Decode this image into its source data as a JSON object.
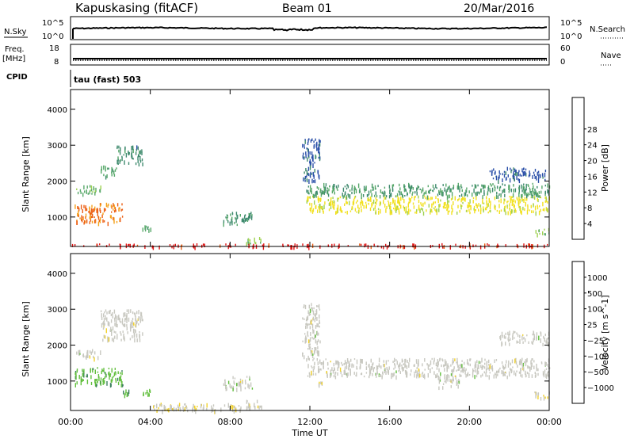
{
  "header": {
    "station": "Kapuskasing (fitACF)",
    "beam": "Beam 01",
    "date": "20/Mar/2016"
  },
  "top_panels": {
    "nsky_label": "N.Sky",
    "nsky_ticks": [
      "10^5",
      "10^0"
    ],
    "nsearch_label": "N.Search",
    "nsearch_ticks": [
      "10^5",
      "10^0"
    ],
    "freq_label_1": "Freq.",
    "freq_label_2": "[MHz]",
    "freq_ticks": [
      "18",
      "8"
    ],
    "nave_label": "Nave",
    "nave_ticks": [
      "60",
      "0"
    ],
    "cpid_label": "CPID",
    "cpid_value": "tau (fast) 503"
  },
  "colors": {
    "power": [
      "#1c2ee6",
      "#2a4fa8",
      "#3f8a6e",
      "#57a86a",
      "#9ed150",
      "#f2e01e",
      "#f5a21c",
      "#ec5f14",
      "#e11414"
    ],
    "velocity": [
      "#2333d6",
      "#2a55b0",
      "#3d7f60",
      "#62bf3e",
      "#c8c8c0",
      "#f2d22a",
      "#f0a020",
      "#ee6a14",
      "#e11414"
    ]
  },
  "chart_data": [
    {
      "type": "heatmap",
      "title": "",
      "xlabel": "Time UT",
      "ylabel": "Slant Range [km]",
      "x_ticks": [
        "00:00",
        "04:00",
        "08:00",
        "12:00",
        "16:00",
        "20:00",
        "00:00"
      ],
      "y_ticks": [
        "1000",
        "2000",
        "3000",
        "4000"
      ],
      "xlim": [
        0,
        24
      ],
      "ylim": [
        180,
        4550
      ],
      "colorbar_label": "Power [dB]",
      "colorbar_ticks": [
        "4",
        "8",
        "12",
        "16",
        "20",
        "24",
        "28"
      ],
      "colorbar_range": [
        0,
        32
      ],
      "regions": [
        {
          "x": [
            0.2,
            1.5
          ],
          "y": [
            1650,
            1900
          ],
          "value": 13
        },
        {
          "x": [
            1.5,
            2.3
          ],
          "y": [
            2150,
            2450
          ],
          "value": 12
        },
        {
          "x": [
            2.3,
            3.6
          ],
          "y": [
            2500,
            3000
          ],
          "value": 9
        },
        {
          "x": [
            0.2,
            2.6
          ],
          "y": [
            850,
            1400
          ],
          "value": 25
        },
        {
          "x": [
            3.6,
            4.0
          ],
          "y": [
            650,
            780
          ],
          "value": 12
        },
        {
          "x": [
            7.6,
            9.1
          ],
          "y": [
            800,
            1150
          ],
          "value": 10
        },
        {
          "x": [
            8.8,
            9.6
          ],
          "y": [
            280,
            480
          ],
          "value": 14
        },
        {
          "x": [
            11.8,
            24.0
          ],
          "y": [
            1150,
            1600
          ],
          "value": 19
        },
        {
          "x": [
            11.8,
            24.0
          ],
          "y": [
            1600,
            1950
          ],
          "value": 11
        },
        {
          "x": [
            11.6,
            12.5
          ],
          "y": [
            2000,
            3200
          ],
          "value": 6
        },
        {
          "x": [
            21.0,
            23.8
          ],
          "y": [
            2050,
            2400
          ],
          "value": 6
        },
        {
          "x": [
            23.3,
            24.0
          ],
          "y": [
            550,
            750
          ],
          "value": 14
        },
        {
          "x": [
            0.0,
            24.0
          ],
          "y": [
            200,
            270
          ],
          "value": 30
        }
      ]
    },
    {
      "type": "heatmap",
      "title": "",
      "xlabel": "Time UT",
      "ylabel": "Slant Range [km]",
      "x_ticks": [
        "00:00",
        "04:00",
        "08:00",
        "12:00",
        "16:00",
        "20:00",
        "00:00"
      ],
      "y_ticks": [
        "1000",
        "2000",
        "3000",
        "4000"
      ],
      "xlim": [
        0,
        24
      ],
      "ylim": [
        180,
        4550
      ],
      "colorbar_label": "Velocity [m s^-1]",
      "colorbar_ticks": [
        "1000",
        "500",
        "100",
        "25",
        "−25",
        "−100",
        "−500",
        "−1000"
      ],
      "colorbar_range": [
        -1200,
        1200
      ],
      "regions": [
        {
          "x": [
            0.2,
            1.5
          ],
          "y": [
            1650,
            1900
          ],
          "value": 0
        },
        {
          "x": [
            1.5,
            3.6
          ],
          "y": [
            2150,
            3000
          ],
          "value": 0
        },
        {
          "x": [
            0.2,
            2.6
          ],
          "y": [
            900,
            1400
          ],
          "value": -300
        },
        {
          "x": [
            3.6,
            4.0
          ],
          "y": [
            650,
            780
          ],
          "value": -300
        },
        {
          "x": [
            2.6,
            2.9
          ],
          "y": [
            650,
            780
          ],
          "value": -300
        },
        {
          "x": [
            7.6,
            9.1
          ],
          "y": [
            800,
            1150
          ],
          "value": 0
        },
        {
          "x": [
            8.8,
            9.6
          ],
          "y": [
            280,
            480
          ],
          "value": 60
        },
        {
          "x": [
            4.0,
            9.0
          ],
          "y": [
            200,
            400
          ],
          "value": 60
        },
        {
          "x": [
            11.8,
            24.0
          ],
          "y": [
            1150,
            1650
          ],
          "value": 0
        },
        {
          "x": [
            11.6,
            12.5
          ],
          "y": [
            1700,
            3200
          ],
          "value": 0
        },
        {
          "x": [
            12.4,
            12.6
          ],
          "y": [
            850,
            1000
          ],
          "value": 60
        },
        {
          "x": [
            18.4,
            19.5
          ],
          "y": [
            850,
            1200
          ],
          "value": 0
        },
        {
          "x": [
            21.5,
            24.0
          ],
          "y": [
            2050,
            2400
          ],
          "value": 0
        },
        {
          "x": [
            23.2,
            24.0
          ],
          "y": [
            550,
            750
          ],
          "value": 60
        }
      ]
    }
  ]
}
